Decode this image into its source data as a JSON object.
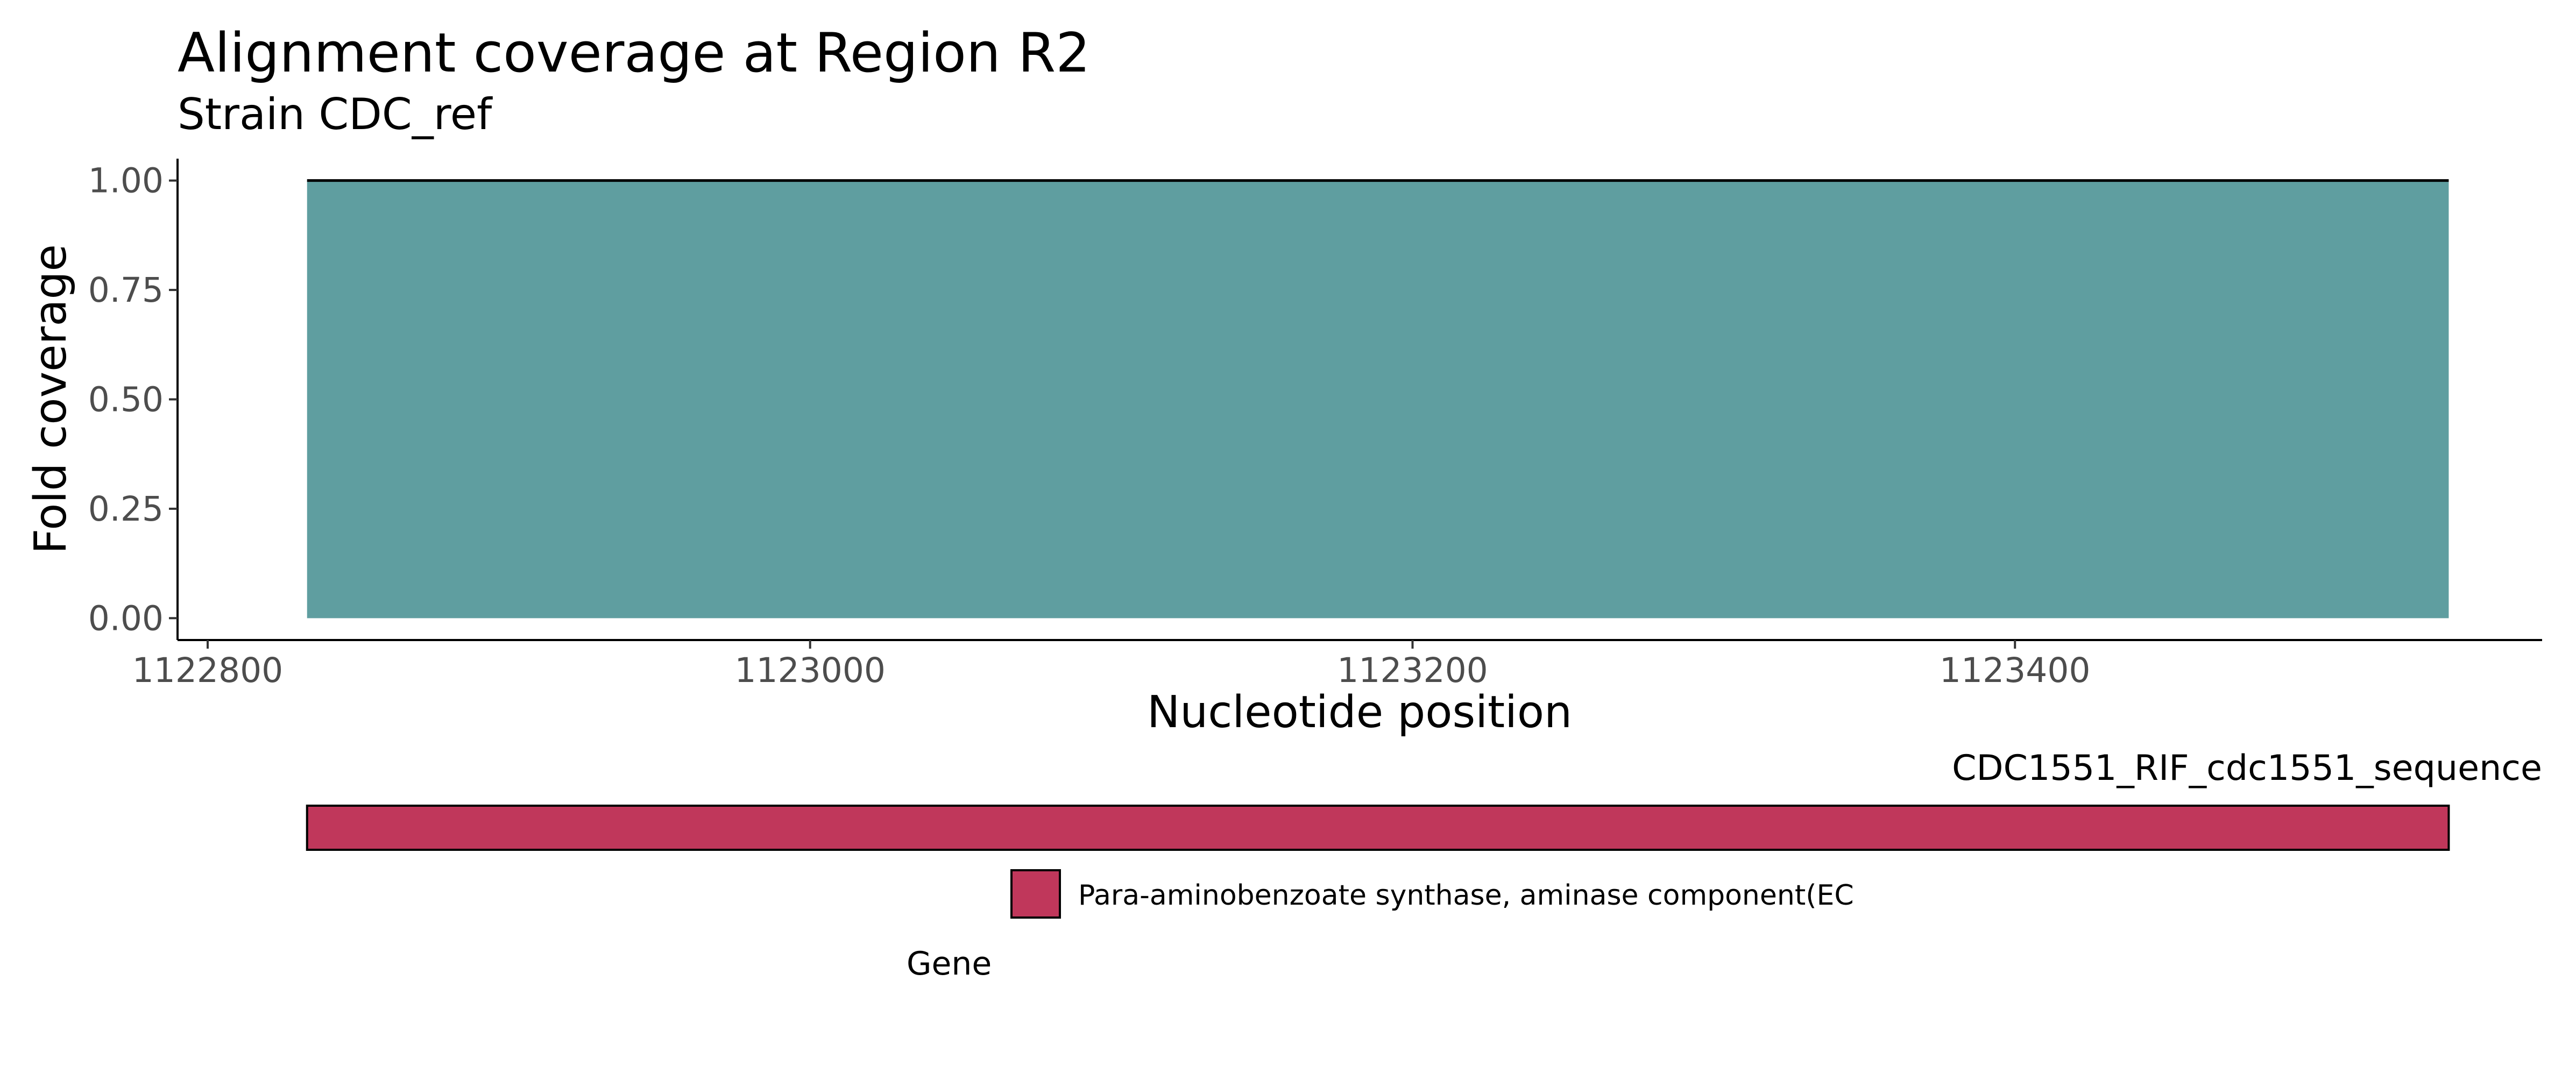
{
  "chart_data": {
    "type": "area",
    "title": "Alignment coverage at Region R2",
    "subtitle": "Strain CDC_ref",
    "xlabel": "Nucleotide position",
    "ylabel": "Fold coverage",
    "xlim": [
      1122790,
      1123575
    ],
    "ylim": [
      -0.05,
      1.05
    ],
    "x_ticks": [
      1122800,
      1123000,
      1123200,
      1123400
    ],
    "y_ticks": [
      0,
      0.25,
      0.5,
      0.75,
      1
    ],
    "x_tick_labels": [
      "1122800",
      "1123000",
      "1123200",
      "1123400"
    ],
    "y_tick_labels": [
      "0.00",
      "0.25",
      "0.50",
      "0.75",
      "1.00"
    ],
    "grid": false,
    "series": [
      {
        "x": [
          1122833,
          1123544
        ],
        "y": [
          1.0,
          1.0
        ],
        "color": "#5f9ea0"
      }
    ],
    "gene_track": {
      "label": "CDC1551_RIF_cdc1551_sequence",
      "genes": [
        {
          "start": 1122833,
          "end": 1123544,
          "name": "Para-aminobenzoate synthase, aminase component(EC",
          "color": "#c0375b"
        }
      ],
      "legend_title": "Gene",
      "legend_position": "bottom"
    }
  }
}
